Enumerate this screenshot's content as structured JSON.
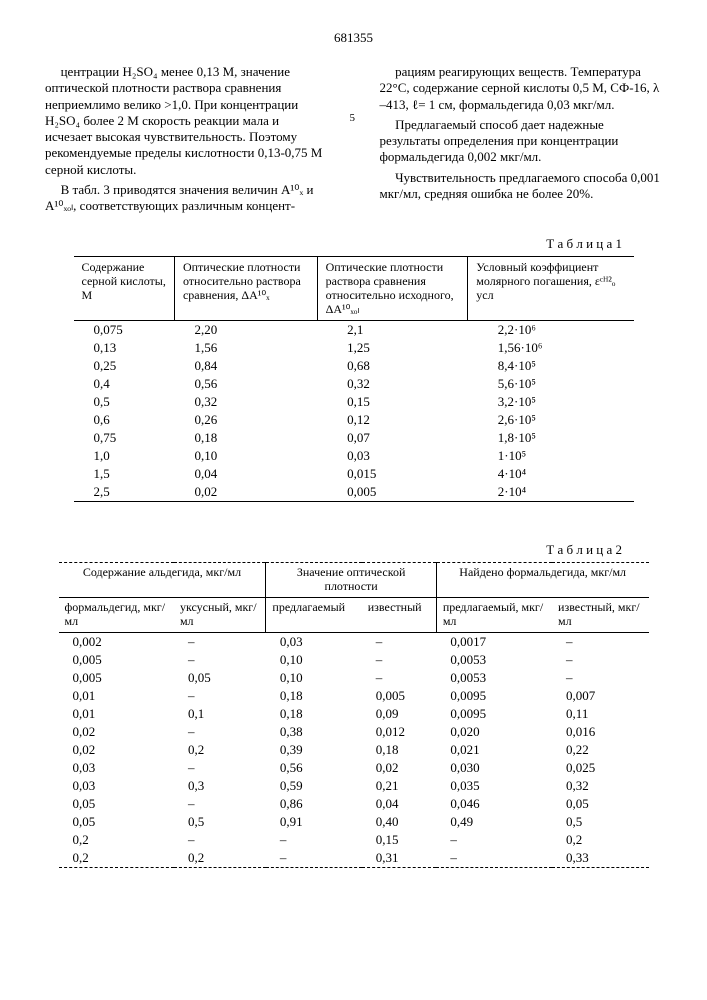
{
  "pageNumber": "681355",
  "leftParas": [
    "центрации H₂SO₄ менее 0,13 М, значение оптической плотности раствора сравнения неприемлимо велико >1,0. При концентрации H₂SO₄ более 2 М скорость реакции мала и исчезает высокая чувствительность. Поэтому рекомендуемые пределы кислотности 0,13-0,75 М серной кислоты.",
    "В табл. 3 приводятся значения величин A¹⁰ₓ и A¹⁰ₓₒₗ, соответствующих различным концент-"
  ],
  "rightParas": [
    "рациям реагирующих веществ. Температура 22°С, содержание серной кислоты 0,5 М, СФ-16, λ –413, ℓ= 1 см, формальдегида 0,03 мкг/мл.",
    "Предлагаемый способ дает надежные результаты определения при концентрации формальдегида 0,002 мкг/мл.",
    "Чувствительность предлагаемого способа 0,001 мкг/мл, средняя ошибка не более 20%."
  ],
  "marginNum": "5",
  "table1": {
    "label": "Т а б л и ц а 1",
    "headers": [
      "Содержание серной кислоты, М",
      "Оптические плотности относительно раствора сравнения, ΔA¹⁰ₓ",
      "Оптические плотности раствора сравнения относительно исходного, ΔA¹⁰ₓₒₗ",
      "Условный коэффициент молярного погашения, εᶜᴴ²ₒ  усл"
    ],
    "rows": [
      [
        "0,075",
        "2,20",
        "2,1",
        "2,2·10⁶"
      ],
      [
        "0,13",
        "1,56",
        "1,25",
        "1,56·10⁶"
      ],
      [
        "0,25",
        "0,84",
        "0,68",
        "8,4·10⁵"
      ],
      [
        "0,4",
        "0,56",
        "0,32",
        "5,6·10⁵"
      ],
      [
        "0,5",
        "0,32",
        "0,15",
        "3,2·10⁵"
      ],
      [
        "0,6",
        "0,26",
        "0,12",
        "2,6·10⁵"
      ],
      [
        "0,75",
        "0,18",
        "0,07",
        "1,8·10⁵"
      ],
      [
        "1,0",
        "0,10",
        "0,03",
        "1·10⁵"
      ],
      [
        "1,5",
        "0,04",
        "0,015",
        "4·10⁴"
      ],
      [
        "2,5",
        "0,02",
        "0,005",
        "2·10⁴"
      ]
    ]
  },
  "table2": {
    "label": "Т а б л и ц а 2",
    "topHeaders": [
      "Содержание альдегида, мкг/мл",
      "Значение оптической плотности",
      "Найдено формальдегида, мкг/мл"
    ],
    "subHeaders": [
      "формальдегид, мкг/мл",
      "уксусный, мкг/мл",
      "предлагаемый",
      "известный",
      "предлагаемый, мкг/мл",
      "известный, мкг/мл"
    ],
    "rows": [
      [
        "0,002",
        "–",
        "0,03",
        "–",
        "0,0017",
        "–"
      ],
      [
        "0,005",
        "–",
        "0,10",
        "–",
        "0,0053",
        "–"
      ],
      [
        "0,005",
        "0,05",
        "0,10",
        "–",
        "0,0053",
        "–"
      ],
      [
        "0,01",
        "–",
        "0,18",
        "0,005",
        "0,0095",
        "0,007"
      ],
      [
        "0,01",
        "0,1",
        "0,18",
        "0,09",
        "0,0095",
        "0,11"
      ],
      [
        "0,02",
        "–",
        "0,38",
        "0,012",
        "0,020",
        "0,016"
      ],
      [
        "0,02",
        "0,2",
        "0,39",
        "0,18",
        "0,021",
        "0,22"
      ],
      [
        "0,03",
        "–",
        "0,56",
        "0,02",
        "0,030",
        "0,025"
      ],
      [
        "0,03",
        "0,3",
        "0,59",
        "0,21",
        "0,035",
        "0,32"
      ],
      [
        "0,05",
        "–",
        "0,86",
        "0,04",
        "0,046",
        "0,05"
      ],
      [
        "0,05",
        "0,5",
        "0,91",
        "0,40",
        "0,49",
        "0,5"
      ],
      [
        "0,2",
        "–",
        "–",
        "0,15",
        "–",
        "0,2"
      ],
      [
        "0,2",
        "0,2",
        "–",
        "0,31",
        "–",
        "0,33"
      ]
    ]
  }
}
